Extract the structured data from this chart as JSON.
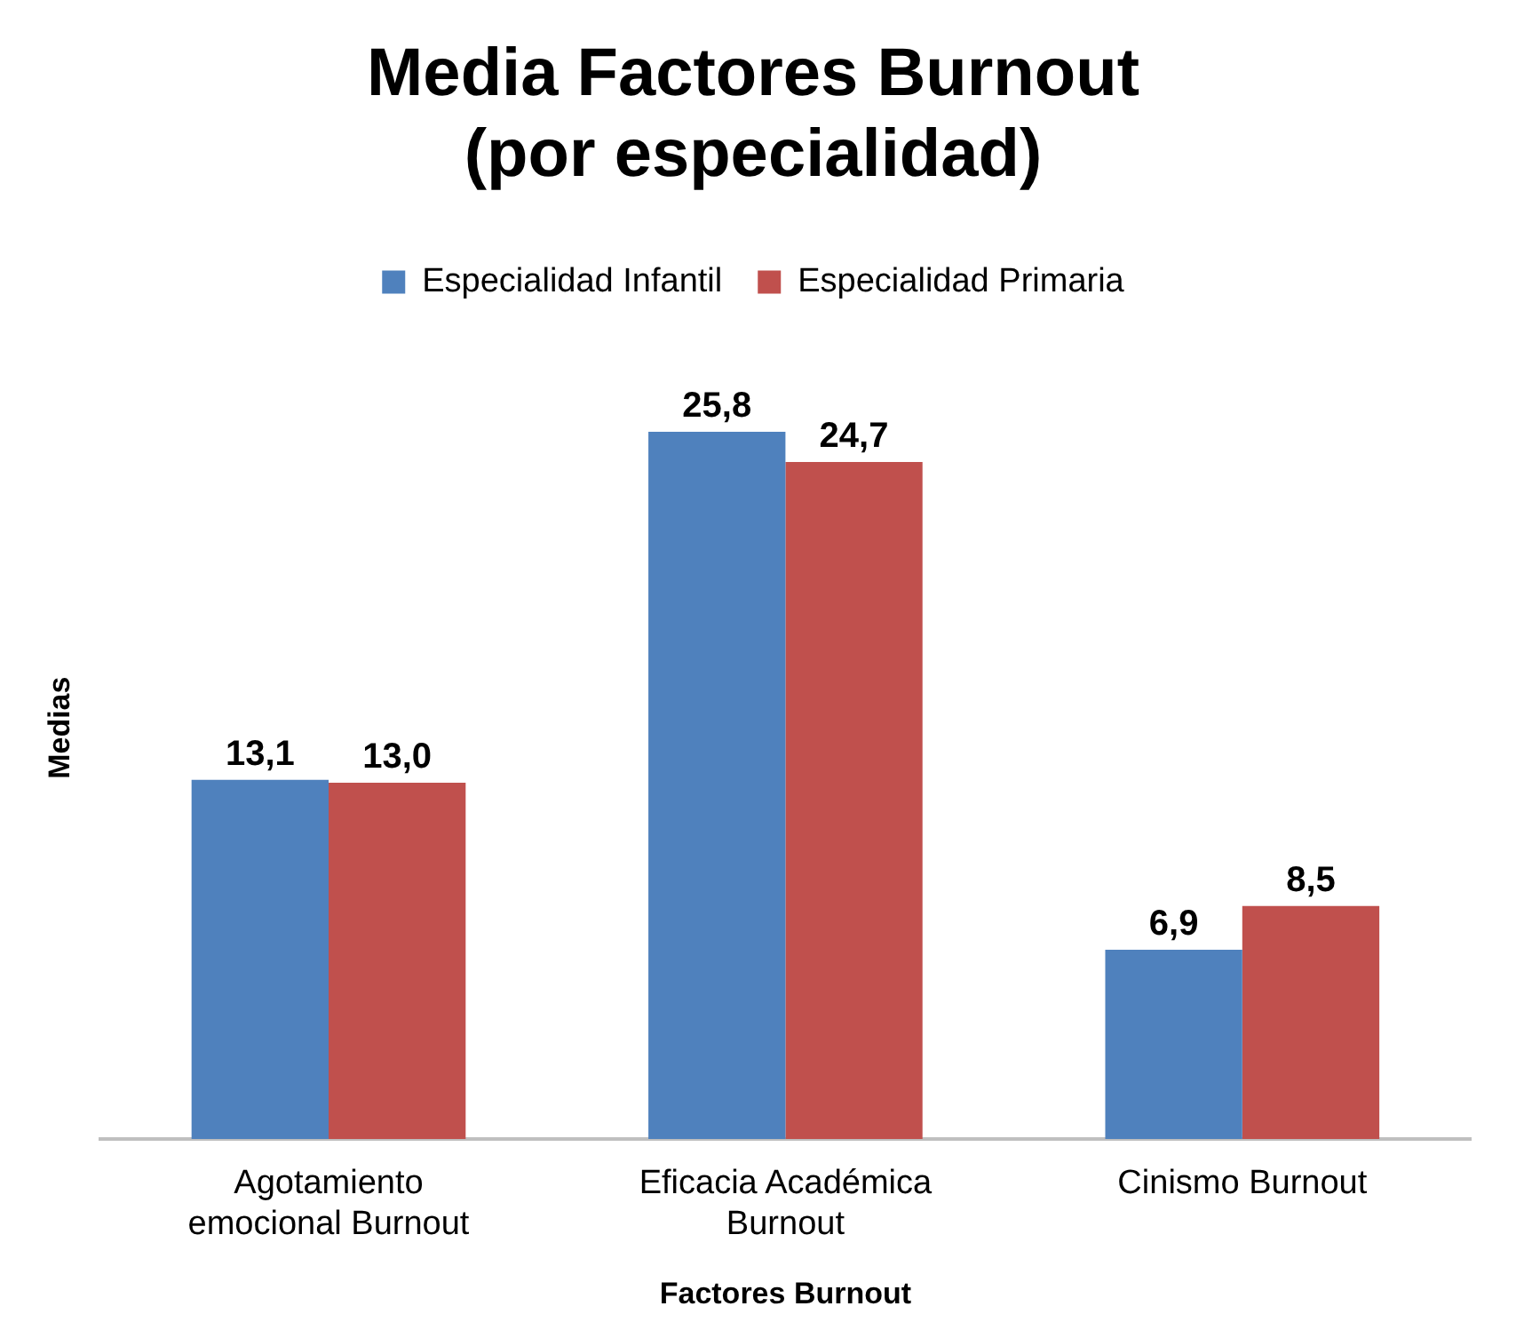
{
  "chart_data": {
    "type": "bar",
    "title": [
      "Media Factores Burnout",
      "(por especialidad)"
    ],
    "xlabel": "Factores Burnout",
    "ylabel": "Medias",
    "categories": [
      [
        "Agotamiento",
        "emocional Burnout"
      ],
      [
        "Eficacia Académica",
        "Burnout"
      ],
      [
        "Cinismo Burnout"
      ]
    ],
    "series": [
      {
        "name": "Especialidad Infantil",
        "color": "#4f81bd",
        "values": [
          13.1,
          25.8,
          6.9
        ],
        "value_labels": [
          "13,1",
          "25,8",
          "6,9"
        ]
      },
      {
        "name": "Especialidad Primaria",
        "color": "#c0504d",
        "values": [
          13.0,
          24.7,
          8.5
        ],
        "value_labels": [
          "13,0",
          "24,7",
          "8,5"
        ]
      }
    ],
    "legend": "top",
    "grid": false,
    "tick_labels": "x"
  }
}
